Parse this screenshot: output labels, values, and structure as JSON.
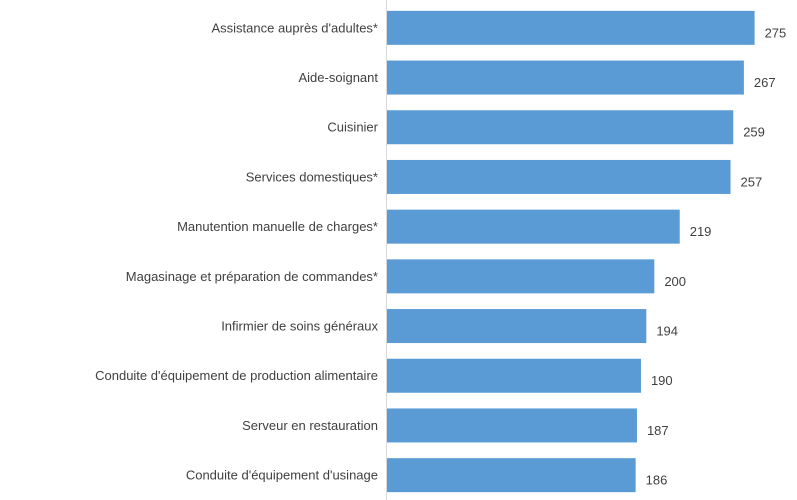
{
  "chart_data": {
    "type": "bar",
    "orientation": "horizontal",
    "categories": [
      "Assistance auprès d'adultes*",
      "Aide-soignant",
      "Cuisinier",
      "Services domestiques*",
      "Manutention manuelle de charges*",
      "Magasinage et préparation de commandes*",
      "Infirmier de soins généraux",
      "Conduite d'équipement de production alimentaire",
      "Serveur en restauration",
      "Conduite d'équipement d'usinage"
    ],
    "values": [
      275,
      267,
      259,
      257,
      219,
      200,
      194,
      190,
      187,
      186
    ],
    "color": "#5b9bd5",
    "xlim": [
      0,
      300
    ]
  }
}
